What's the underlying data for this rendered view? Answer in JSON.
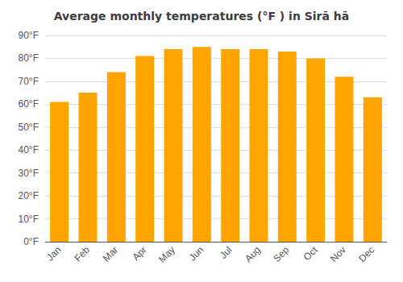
{
  "chart_data": {
    "type": "bar",
    "title": "Average monthly temperatures (°F ) in Sirā hā",
    "categories": [
      "Jan",
      "Feb",
      "Mar",
      "Apr",
      "May",
      "Jun",
      "Jul",
      "Aug",
      "Sep",
      "Oct",
      "Nov",
      "Dec"
    ],
    "values": [
      61,
      65,
      74,
      81,
      84,
      85,
      84,
      84,
      83,
      80,
      72,
      63
    ],
    "color": "#FFA500",
    "ylim": [
      0,
      90
    ],
    "yticks": [
      {
        "value": 0,
        "label": "0°F"
      },
      {
        "value": 10,
        "label": "10°F"
      },
      {
        "value": 20,
        "label": "20°F"
      },
      {
        "value": 30,
        "label": "30°F"
      },
      {
        "value": 40,
        "label": "40°F"
      },
      {
        "value": 50,
        "label": "50°F"
      },
      {
        "value": 60,
        "label": "60°F"
      },
      {
        "value": 70,
        "label": "70°F"
      },
      {
        "value": 80,
        "label": "80°F"
      },
      {
        "value": 90,
        "label": "90°F"
      }
    ],
    "grid": true
  }
}
